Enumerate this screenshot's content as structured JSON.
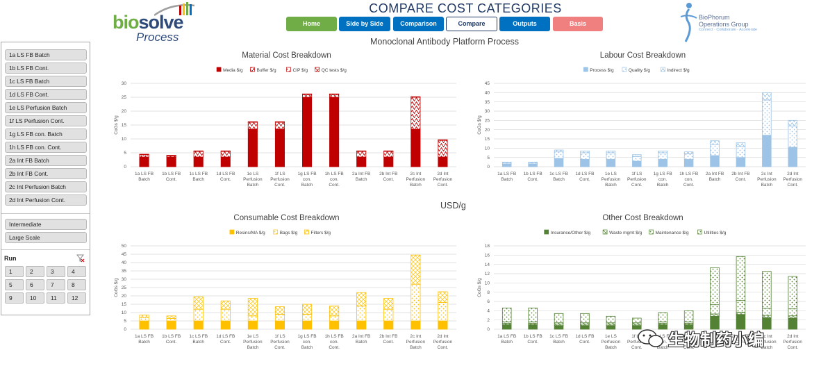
{
  "header": {
    "title": "COMPARE COST CATEGORIES",
    "subtitle": "Monoclonal Antibody Platform Process",
    "logo_main": "biosolve",
    "logo_sub": "Process",
    "partner_line1": "BioPhorum",
    "partner_line2": "Operations Group",
    "partner_tagline": "Connect · Collaborate · Accelerate"
  },
  "nav": [
    {
      "label": "Home",
      "color": "#70ad47",
      "text_color": "#ffffff"
    },
    {
      "label": "Side by Side",
      "color": "#0070c0",
      "text_color": "#ffffff"
    },
    {
      "label": "Comparison",
      "color": "#0070c0",
      "text_color": "#ffffff"
    },
    {
      "label": "Compare",
      "color": "#ffffff",
      "text_color": "#1f3864",
      "active": true
    },
    {
      "label": "Outputs",
      "color": "#0070c0",
      "text_color": "#ffffff"
    },
    {
      "label": "Basis",
      "color": "#f08080",
      "text_color": "#ffffff"
    }
  ],
  "slicer": {
    "scenarios": [
      "1a LS FB Batch",
      "1b LS FB Cont.",
      "1c LS FB Batch",
      "1d LS FB Cont.",
      "1e LS Perfusion Batch",
      "1f LS Perfusion Cont.",
      "1g LS FB con. Batch",
      "1h LS FB con. Cont.",
      "2a Int FB Batch",
      "2b Int FB Cont.",
      "2c Int Perfusion Batch",
      "2d Int Perfusion Cont."
    ],
    "scales": [
      "Intermediate",
      "Large Scale"
    ],
    "run_label": "Run",
    "runs": [
      "1",
      "2",
      "3",
      "4",
      "5",
      "6",
      "7",
      "8",
      "9",
      "10",
      "11",
      "12"
    ]
  },
  "center_label": "USD/g",
  "watermark": "生物制药小编",
  "charts": [
    {
      "id": "material",
      "chart_data": {
        "type": "bar",
        "stacked": true,
        "title": "Material Cost Breakdown",
        "ylabel": "CoGs $/g",
        "ylim": [
          0,
          30
        ],
        "yticks": [
          0,
          5,
          10,
          15,
          20,
          25,
          30
        ],
        "categories": [
          "1a LS FB Batch",
          "1b LS FB Cont.",
          "1c LS FB Batch",
          "1d LS FB Cont.",
          "1e LS Perfusion Batch",
          "1f LS Perfusion Cont.",
          "1g LS FB con. Batch",
          "1h LS FB con. Cont.",
          "2a Int FB Batch",
          "2b Int FB Cont.",
          "2c Int Perfusion Batch",
          "2d Int Perfusion Cont."
        ],
        "series": [
          {
            "name": "Media $/g",
            "color": "#c00000",
            "pattern": "solid",
            "values": [
              3.5,
              3.5,
              3.5,
              3.5,
              13.5,
              13.5,
              25,
              25,
              3.5,
              3.5,
              13.5,
              3.5
            ]
          },
          {
            "name": "Buffer $/g",
            "color": "#c00000",
            "pattern": "zigzag",
            "values": [
              0.8,
              0.4,
              2.0,
              2.0,
              2.5,
              2.5,
              1.0,
              1.0,
              2.0,
              2.0,
              11.5,
              6.0
            ]
          },
          {
            "name": "CIP $/g",
            "color": "#c00000",
            "pattern": "dots",
            "values": [
              0.1,
              0.1,
              0.1,
              0.1,
              0.1,
              0.1,
              0.1,
              0.1,
              0.1,
              0.1,
              0.1,
              0.1
            ]
          },
          {
            "name": "QC tests $/g",
            "color": "#c00000",
            "pattern": "cross",
            "values": [
              0.1,
              0.1,
              0.1,
              0.1,
              0.1,
              0.1,
              0.1,
              0.1,
              0.1,
              0.1,
              0.1,
              0.1
            ]
          }
        ],
        "grid": true,
        "legend": "top-center"
      }
    },
    {
      "id": "labour",
      "chart_data": {
        "type": "bar",
        "stacked": true,
        "title": "Labour Cost Breakdown",
        "ylabel": "CoGs $/g",
        "ylim": [
          0,
          45
        ],
        "yticks": [
          0,
          5,
          10,
          15,
          20,
          25,
          30,
          35,
          40,
          45
        ],
        "categories": [
          "1a LS FB Batch",
          "1b LS FB Cont.",
          "1c LS FB Batch",
          "1d LS FB Cont.",
          "1e LS Perfusion Batch",
          "1f LS Perfusion Cont.",
          "1g LS FB con. Batch",
          "1h LS FB con. Cont.",
          "2a Int FB Batch",
          "2b Int FB Cont.",
          "2c Int Perfusion Batch",
          "2d Int Perfusion Cont."
        ],
        "series": [
          {
            "name": "Process $/g",
            "color": "#9dc3e6",
            "pattern": "solid",
            "values": [
              1.5,
              1.5,
              4.5,
              4,
              4,
              3,
              4,
              4,
              6,
              5,
              17,
              10.5
            ]
          },
          {
            "name": "Quality $/g",
            "color": "#9dc3e6",
            "pattern": "dots",
            "values": [
              0.5,
              0.5,
              3.5,
              3.5,
              3.5,
              2.5,
              3.5,
              3,
              6,
              6,
              19,
              11.5
            ]
          },
          {
            "name": "Indirect $/g",
            "color": "#9dc3e6",
            "pattern": "zigzag",
            "values": [
              0.5,
              0.5,
              1,
              1,
              1,
              1,
              1,
              1,
              2,
              2,
              4,
              3
            ]
          }
        ],
        "grid": true,
        "legend": "top-center"
      }
    },
    {
      "id": "consumable",
      "chart_data": {
        "type": "bar",
        "stacked": true,
        "title": "Consumable Cost Breakdown",
        "ylabel": "CoGs $/g",
        "ylim": [
          0,
          50
        ],
        "yticks": [
          0,
          5,
          10,
          15,
          20,
          25,
          30,
          35,
          40,
          45,
          50
        ],
        "categories": [
          "1a LS FB Batch",
          "1b LS FB Cont.",
          "1c LS FB Batch",
          "1d LS FB Cont.",
          "1e LS Perfusion Batch",
          "1f LS Perfusion Cont.",
          "1g LS FB con. Batch",
          "1h LS FB con. Cont.",
          "2a Int FB Batch",
          "2b Int FB Cont.",
          "2c Int Perfusion Batch",
          "2d Int Perfusion Cont."
        ],
        "series": [
          {
            "name": "Resins/MA $/g",
            "color": "#ffc000",
            "pattern": "solid",
            "values": [
              5,
              5,
              5,
              5,
              5,
              5,
              5,
              5,
              5,
              5,
              5,
              5
            ]
          },
          {
            "name": "Bags $/g",
            "color": "#ffc000",
            "pattern": "dots",
            "values": [
              2,
              1.5,
              7,
              7,
              3,
              4,
              4,
              3,
              9,
              7,
              22,
              11
            ]
          },
          {
            "name": "Filters $/g",
            "color": "#ffc000",
            "pattern": "cross",
            "values": [
              1.5,
              1.5,
              7.5,
              5,
              10.5,
              4.5,
              6,
              6,
              8,
              6.5,
              17.5,
              6.5
            ]
          }
        ],
        "grid": true,
        "legend": "top-center"
      }
    },
    {
      "id": "other",
      "chart_data": {
        "type": "bar",
        "stacked": true,
        "title": "Other Cost Breakdown",
        "ylabel": "CoGs $/g",
        "ylim": [
          0,
          18
        ],
        "yticks": [
          0,
          2,
          4,
          6,
          8,
          10,
          12,
          14,
          16,
          18
        ],
        "categories": [
          "1a LS FB Batch",
          "1b LS FB Cont.",
          "1c LS FB Batch",
          "1d LS FB Cont.",
          "1e LS Perfusion Batch",
          "1f LS Perfusion Cont.",
          "1g LS FB con. Batch",
          "1h LS FB con. Cont.",
          "2a Int FB Batch",
          "2b Int FB Cont.",
          "2c Int Perfusion Batch",
          "2d Int Perfusion Cont."
        ],
        "series": [
          {
            "name": "Insurance/Other $/g",
            "color": "#548235",
            "pattern": "solid",
            "values": [
              1,
              1,
              0.8,
              0.8,
              0.8,
              0.8,
              1,
              1,
              2.8,
              3.2,
              2.5,
              2.4
            ]
          },
          {
            "name": "Waste mgmt $/g",
            "color": "#548235",
            "pattern": "cross",
            "values": [
              0.3,
              0.3,
              0.3,
              0.3,
              0.3,
              0.3,
              0.3,
              0.3,
              0.5,
              0.5,
              0.5,
              0.5
            ]
          },
          {
            "name": "Maintenance $/g",
            "color": "#548235",
            "pattern": "dots",
            "values": [
              0.3,
              0.3,
              0.3,
              0.3,
              0.3,
              0.3,
              0.3,
              0.3,
              2,
              2.5,
              1.5,
              1.5
            ]
          },
          {
            "name": "Utilities $/g",
            "color": "#548235",
            "pattern": "dots",
            "values": [
              3,
              3,
              2,
              2,
              1.4,
              1,
              2,
              2.4,
              8,
              9.5,
              8,
              7
            ]
          }
        ],
        "grid": true,
        "legend": "top-center"
      }
    }
  ]
}
